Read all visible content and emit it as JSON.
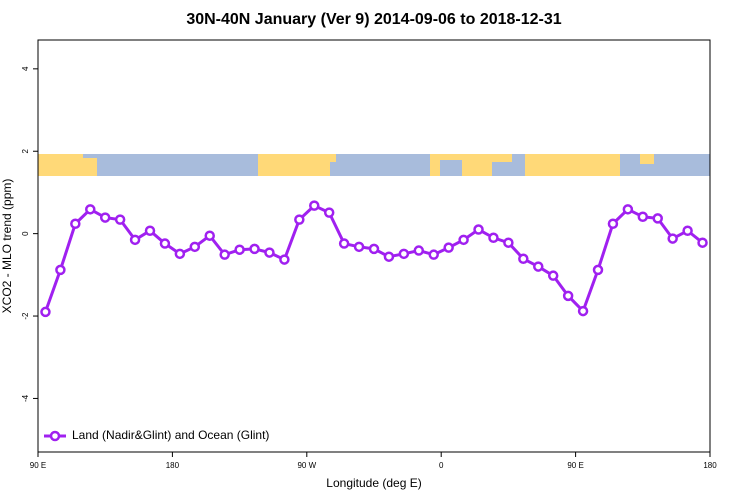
{
  "chart_data": {
    "type": "line",
    "title": "30N-40N January (Ver 9)   2014-09-06 to 2018-12-31",
    "xlabel": "Longitude (deg E)",
    "ylabel": "XCO2 - MLO trend (ppm)",
    "x": [
      95,
      105,
      115,
      125,
      135,
      145,
      155,
      165,
      175,
      185,
      195,
      205,
      215,
      225,
      235,
      245,
      255,
      265,
      275,
      285,
      295,
      305,
      315,
      325,
      335,
      345,
      355,
      365,
      375,
      385,
      395,
      405,
      415,
      425,
      435,
      445,
      455,
      465,
      475,
      485,
      495,
      505,
      515,
      525,
      535
    ],
    "series": [
      {
        "name": "Land (Nadir&Glint) and Ocean (Glint)",
        "color": "#a020f0",
        "values": [
          -1.9,
          -0.88,
          0.24,
          0.59,
          0.39,
          0.34,
          -0.15,
          0.07,
          -0.24,
          -0.49,
          -0.32,
          -0.05,
          -0.51,
          -0.39,
          -0.37,
          -0.46,
          -0.63,
          0.34,
          0.68,
          0.51,
          -0.24,
          -0.32,
          -0.37,
          -0.56,
          -0.49,
          -0.41,
          -0.51,
          -0.34,
          -0.15,
          0.1,
          -0.1,
          -0.22,
          -0.61,
          -0.8,
          -1.02,
          -1.51,
          -1.88,
          -0.88,
          0.24,
          0.59,
          0.41,
          0.37,
          -0.12,
          0.07,
          -0.22
        ]
      }
    ],
    "xlim": [
      90,
      540
    ],
    "xticks": [
      {
        "value": 90,
        "label": "90 E"
      },
      180,
      {
        "value": 270,
        "label": "90 W"
      },
      {
        "value": 360,
        "label": "0"
      },
      {
        "value": 450,
        "label": "90 E"
      },
      {
        "value": 540,
        "label": "180"
      }
    ],
    "ylim": [
      -5.3,
      4.7
    ],
    "yticks": [
      -4,
      -2,
      0,
      2,
      4
    ],
    "legend": "bottom-left"
  }
}
